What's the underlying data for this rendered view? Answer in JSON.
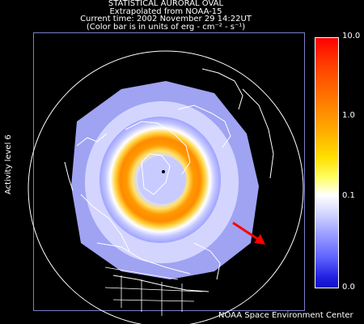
{
  "header": {
    "line1": "STATISTICAL AURORAL OVAL",
    "line2": "Extrapolated from NOAA-15",
    "line3": "Current time: 2002 November 29 14:22UT",
    "line4": "(Color bar is in units of erg - cm⁻² - s⁻¹)"
  },
  "side_label": "Activity level 6",
  "colorbar": {
    "ticks": [
      "10.0",
      "1.0",
      "0.1",
      "0.0"
    ],
    "max_color": "#ff0000",
    "mid_color": "#ffffff",
    "min_color": "#1010c8"
  },
  "footer": "NOAA Space Environment Center",
  "colors": {
    "oval": "#ff9a00",
    "background_band": "#a8acff",
    "coastlines": "#ffffff",
    "arrow": "#ff0000"
  }
}
